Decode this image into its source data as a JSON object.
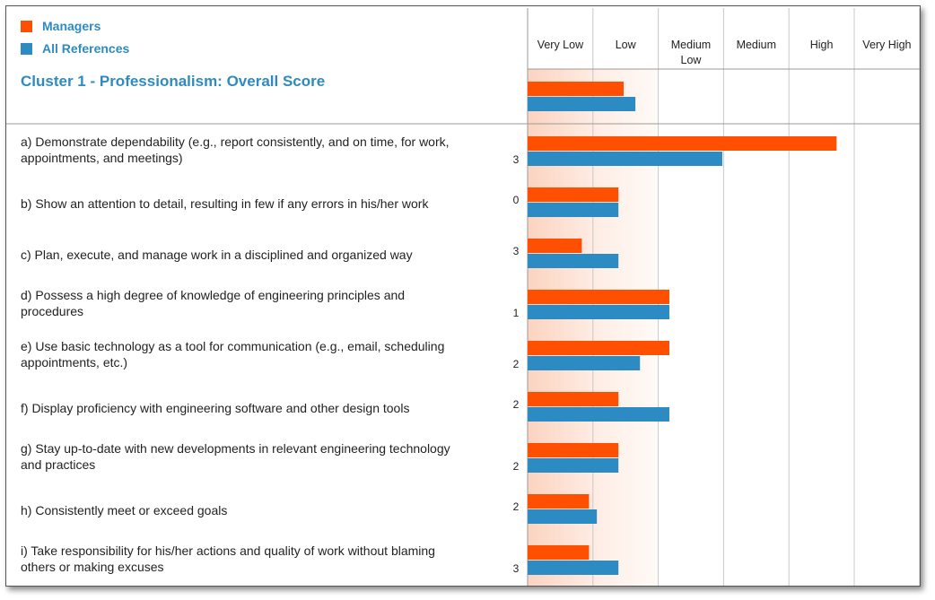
{
  "chart_data": {
    "type": "bar",
    "title": "Cluster 1 - Professionalism: Overall Score",
    "columns": [
      "Very Low",
      "Low",
      "Medium Low",
      "Medium",
      "High",
      "Very High"
    ],
    "xlim": [
      0,
      6
    ],
    "series": [
      {
        "name": "Managers",
        "color": "#ff4f00"
      },
      {
        "name": "All References",
        "color": "#2b8bc2"
      }
    ],
    "overall": {
      "managers": 1.47,
      "all_references": 1.65
    },
    "items": [
      {
        "lines": [
          "a) Demonstrate dependability (e.g., report consistently, and on time, for work,",
          "appointments, and meetings)"
        ],
        "count": "3",
        "managers": 4.73,
        "all_references": 2.98
      },
      {
        "lines": [
          "b) Show an attention to detail, resulting in few if any errors in his/her work"
        ],
        "count": "0",
        "managers": 1.39,
        "all_references": 1.39
      },
      {
        "lines": [
          "c) Plan, execute, and manage work in a disciplined and organized way"
        ],
        "count": "3",
        "managers": 0.83,
        "all_references": 1.39
      },
      {
        "lines": [
          "d) Possess a high degree of knowledge of engineering principles and",
          "procedures"
        ],
        "count": "1",
        "managers": 2.17,
        "all_references": 2.17
      },
      {
        "lines": [
          "e) Use basic technology as a tool for communication (e.g., email, scheduling",
          "appointments, etc.)"
        ],
        "count": "2",
        "managers": 2.17,
        "all_references": 1.72
      },
      {
        "lines": [
          "f) Display proficiency with engineering software and other design tools"
        ],
        "count": "2",
        "managers": 1.39,
        "all_references": 2.17
      },
      {
        "lines": [
          "g) Stay up-to-date with new developments in relevant engineering technology",
          "and practices"
        ],
        "count": "2",
        "managers": 1.39,
        "all_references": 1.39
      },
      {
        "lines": [
          "h) Consistently meet or exceed goals"
        ],
        "count": "2",
        "managers": 0.94,
        "all_references": 1.06
      },
      {
        "lines": [
          "i) Take responsibility for his/her actions and quality of work without blaming",
          "others or making excuses"
        ],
        "count": "3",
        "managers": 0.94,
        "all_references": 1.39
      }
    ]
  }
}
